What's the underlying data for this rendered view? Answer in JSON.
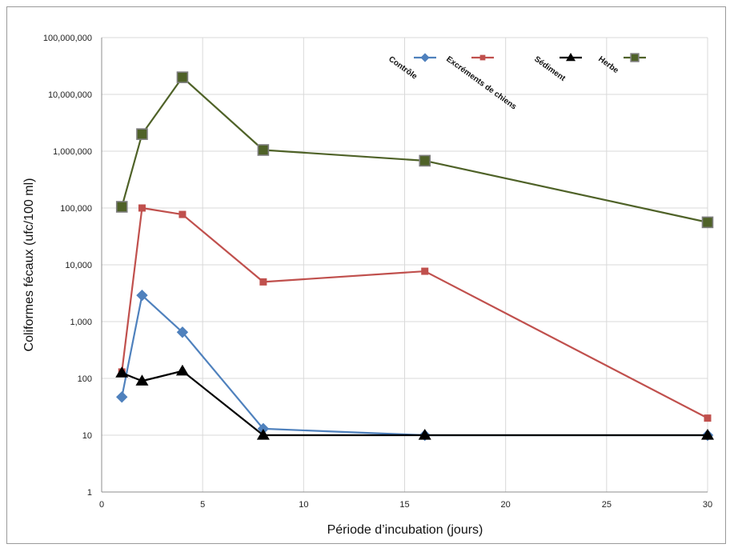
{
  "chart_data": {
    "type": "line",
    "xlabel": "Période d’incubation (jours)",
    "ylabel": "Coliformes fécaux (ufc/100 ml)",
    "y_scale": "log",
    "xlim": [
      0,
      30
    ],
    "ylim": [
      1,
      100000000
    ],
    "grid": true,
    "legend_position": "top-right",
    "x_ticks": [
      {
        "value": 0,
        "label": "0"
      },
      {
        "value": 5,
        "label": "5"
      },
      {
        "value": 10,
        "label": "10"
      },
      {
        "value": 15,
        "label": "15"
      },
      {
        "value": 20,
        "label": "20"
      },
      {
        "value": 25,
        "label": "25"
      },
      {
        "value": 30,
        "label": "30"
      }
    ],
    "y_ticks": [
      {
        "value": 1,
        "label": "1"
      },
      {
        "value": 10,
        "label": "10"
      },
      {
        "value": 100,
        "label": "100"
      },
      {
        "value": 1000,
        "label": "1,000"
      },
      {
        "value": 10000,
        "label": "10,000"
      },
      {
        "value": 100000,
        "label": "100,000"
      },
      {
        "value": 1000000,
        "label": "1,000,000"
      },
      {
        "value": 10000000,
        "label": "10,000,000"
      },
      {
        "value": 100000000,
        "label": "100,000,000"
      }
    ],
    "series": [
      {
        "name": "Contrôle",
        "color": "#4f81bd",
        "marker": "diamond",
        "points": [
          [
            1,
            47
          ],
          [
            2,
            2900
          ],
          [
            4,
            650
          ],
          [
            8,
            13
          ],
          [
            16,
            10
          ],
          [
            30,
            10
          ]
        ]
      },
      {
        "name": "Excréments de chiens",
        "color": "#c0504d",
        "marker": "square",
        "points": [
          [
            1,
            130
          ],
          [
            2,
            100000
          ],
          [
            4,
            77000
          ],
          [
            8,
            5000
          ],
          [
            16,
            7700
          ],
          [
            30,
            20
          ]
        ]
      },
      {
        "name": "Sédiment",
        "color": "#000000",
        "marker": "triangle",
        "points": [
          [
            1,
            125
          ],
          [
            2,
            90
          ],
          [
            4,
            135
          ],
          [
            8,
            10
          ],
          [
            16,
            10
          ],
          [
            30,
            10
          ]
        ]
      },
      {
        "name": "Herbe",
        "color": "#4f6228",
        "marker": "square-outlined",
        "points": [
          [
            1,
            105000
          ],
          [
            2,
            2000000
          ],
          [
            4,
            20000000
          ],
          [
            8,
            1050000
          ],
          [
            16,
            680000
          ],
          [
            30,
            56000
          ]
        ]
      }
    ]
  }
}
